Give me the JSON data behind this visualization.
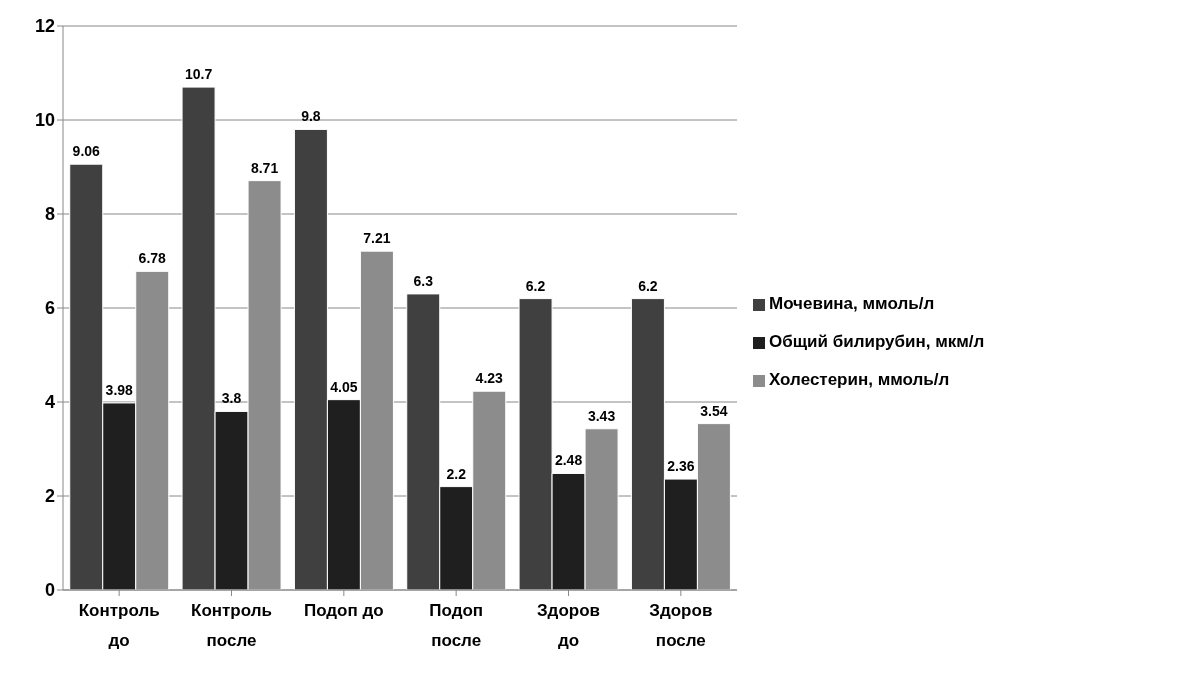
{
  "chart_data": {
    "type": "bar",
    "categories": [
      "Контроль до",
      "Контроль после",
      "Подоп до",
      "Подоп после",
      "Здоров до",
      "Здоров после"
    ],
    "series": [
      {
        "name": "Мочевина, ммоль/л",
        "color": "#404040",
        "values": [
          9.06,
          10.7,
          9.8,
          6.3,
          6.2,
          6.2
        ]
      },
      {
        "name": "Общий билирубин, мкм/л",
        "color": "#1f1f1f",
        "values": [
          3.98,
          3.8,
          4.05,
          2.2,
          2.48,
          2.36
        ]
      },
      {
        "name": "Холестерин, ммоль/л",
        "color": "#8c8c8c",
        "values": [
          6.78,
          8.71,
          7.21,
          4.23,
          3.43,
          3.54
        ]
      }
    ],
    "ylim": [
      0,
      12
    ],
    "yticks": [
      0,
      2,
      4,
      6,
      8,
      10,
      12
    ],
    "grid": "y",
    "legend": "right",
    "data_labels": true
  }
}
